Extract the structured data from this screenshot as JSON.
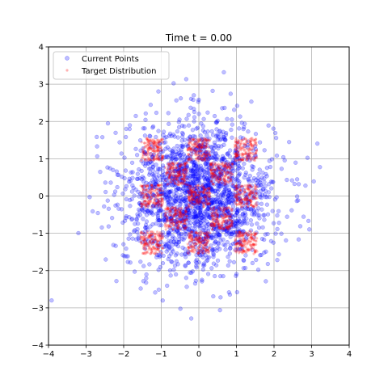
{
  "chart_data": {
    "type": "scatter",
    "title": "Time t = 0.00",
    "xlabel": "",
    "ylabel": "",
    "xlim": [
      -4,
      4
    ],
    "ylim": [
      -4,
      4
    ],
    "xticks": [
      -4,
      -3,
      -2,
      -1,
      0,
      1,
      2,
      3,
      4
    ],
    "yticks": [
      -4,
      -3,
      -2,
      -1,
      0,
      1,
      2,
      3,
      4
    ],
    "grid": true,
    "legend_position": "top-left",
    "series": [
      {
        "name": "Current Points",
        "color": "#0000ff",
        "opacity": 0.25,
        "distribution": "isotropic gaussian",
        "center": [
          0,
          0
        ],
        "std": 1.0,
        "count": 2000
      },
      {
        "name": "Target Distribution",
        "color": "#ff0000",
        "opacity": 0.25,
        "distribution": "uniform squares",
        "square_half_width": 0.3,
        "square_centers": [
          [
            -1.25,
            1.25
          ],
          [
            0,
            1.25
          ],
          [
            1.25,
            1.25
          ],
          [
            -0.6,
            0.6
          ],
          [
            0.6,
            0.6
          ],
          [
            -1.25,
            0
          ],
          [
            0,
            0
          ],
          [
            1.25,
            0
          ],
          [
            -0.6,
            -0.6
          ],
          [
            0.6,
            -0.6
          ],
          [
            -1.25,
            -1.25
          ],
          [
            0,
            -1.25
          ],
          [
            1.25,
            -1.25
          ]
        ],
        "points_per_square": 150
      }
    ]
  }
}
